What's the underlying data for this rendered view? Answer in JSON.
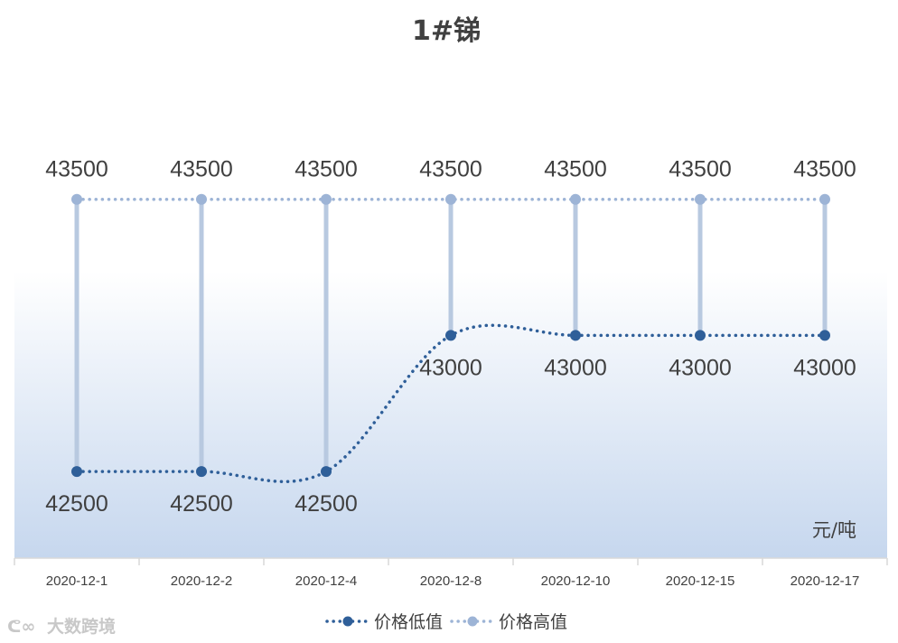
{
  "chart_data": {
    "type": "line",
    "title": "1#锑",
    "unit_label": "元/吨",
    "categories": [
      "2020-12-1",
      "2020-12-2",
      "2020-12-4",
      "2020-12-8",
      "2020-12-10",
      "2020-12-15",
      "2020-12-17"
    ],
    "series": [
      {
        "name": "价格低值",
        "values": [
          42500,
          42500,
          42500,
          43000,
          43000,
          43000,
          43000
        ],
        "color": "#2f5f99",
        "labels": [
          "42500",
          "42500",
          "42500",
          "43000",
          "43000",
          "43000",
          "43000"
        ]
      },
      {
        "name": "价格高值",
        "values": [
          43500,
          43500,
          43500,
          43500,
          43500,
          43500,
          43500
        ],
        "color": "#9db4d6",
        "labels": [
          "43500",
          "43500",
          "43500",
          "43500",
          "43500",
          "43500",
          "43500"
        ]
      }
    ],
    "ylim": [
      42000,
      43700
    ],
    "grid": false,
    "high_low_lines": true,
    "legend_position": "bottom",
    "colors": {
      "background_gradient_bottom": "#c6d7ee",
      "high_low_line": "#b8c9e0",
      "axis": "#d9d9d9"
    }
  },
  "watermark": {
    "text": "大数跨境"
  }
}
